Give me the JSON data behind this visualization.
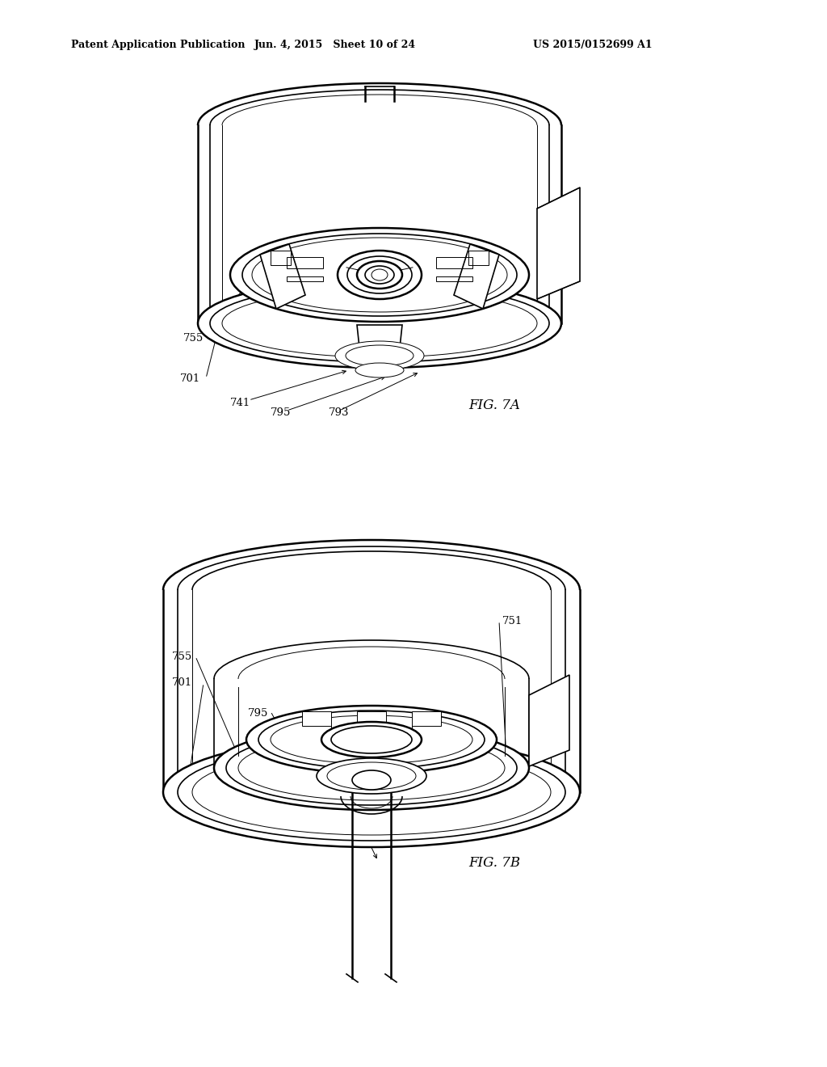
{
  "bg_color": "#ffffff",
  "line_color": "#000000",
  "header_left": "Patent Application Publication",
  "header_center": "Jun. 4, 2015   Sheet 10 of 24",
  "header_right": "US 2015/0152699 A1",
  "fig7a_label": "FIG. 7A",
  "fig7b_label": "FIG. 7B",
  "lw_thin": 0.7,
  "lw_med": 1.2,
  "lw_thick": 1.8,
  "cx7a": 470,
  "cy7a": 310,
  "cx7b": 460,
  "cy7b": 890
}
